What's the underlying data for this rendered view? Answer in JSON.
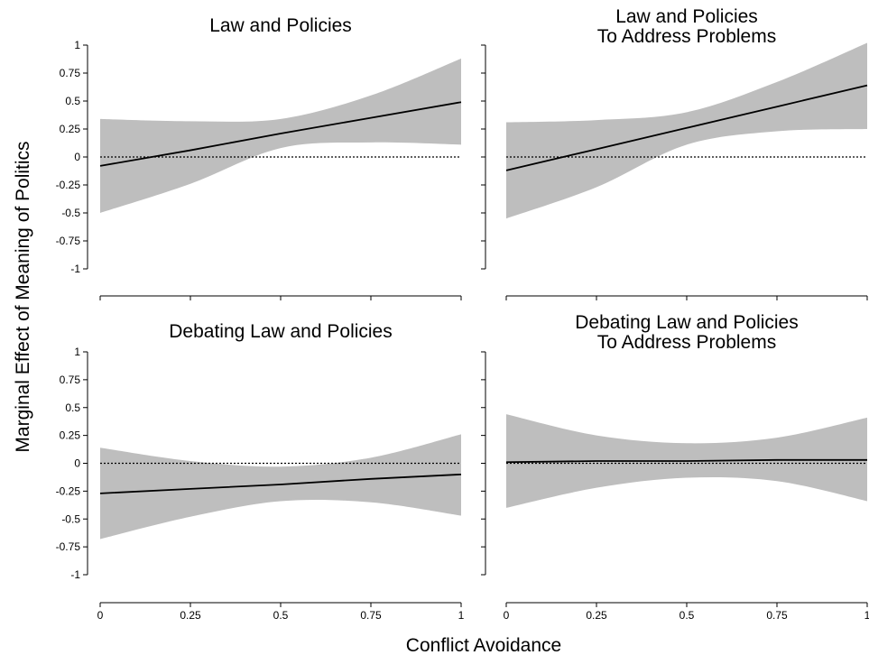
{
  "figure": {
    "ylabel": "Marginal Effect of Meaning of Politics",
    "xlabel": "Conflict Avoidance"
  },
  "chart_data": [
    {
      "type": "line",
      "title": [
        "Law and Policies"
      ],
      "xlim": [
        0,
        1
      ],
      "ylim": [
        -1,
        1
      ],
      "x": [
        0,
        0.25,
        0.5,
        0.75,
        1
      ],
      "xticks": [
        "0",
        "0.25",
        "0.5",
        "0.75",
        "1"
      ],
      "yticks": [
        "1",
        "0.75",
        "0.5",
        "0.25",
        "0",
        "-0.25",
        "-0.5",
        "-0.75",
        "-1"
      ],
      "y": [
        -0.08,
        0.06,
        0.21,
        0.35,
        0.49
      ],
      "lower": [
        -0.5,
        -0.24,
        0.08,
        0.13,
        0.11
      ],
      "upper": [
        0.34,
        0.32,
        0.34,
        0.55,
        0.88
      ],
      "reference_line": 0
    },
    {
      "type": "line",
      "title": [
        "Law and Policies",
        "To Address Problems"
      ],
      "xlim": [
        0,
        1
      ],
      "ylim": [
        -1,
        1
      ],
      "x": [
        0,
        0.25,
        0.5,
        0.75,
        1
      ],
      "xticks": [
        "0",
        "0.25",
        "0.5",
        "0.75",
        "1"
      ],
      "yticks": [],
      "y": [
        -0.12,
        0.07,
        0.26,
        0.45,
        0.64
      ],
      "lower": [
        -0.55,
        -0.27,
        0.11,
        0.23,
        0.25
      ],
      "upper": [
        0.31,
        0.33,
        0.4,
        0.67,
        1.02
      ],
      "reference_line": 0
    },
    {
      "type": "line",
      "title": [
        "Debating Law and Policies"
      ],
      "xlim": [
        0,
        1
      ],
      "ylim": [
        -1,
        1
      ],
      "x": [
        0,
        0.25,
        0.5,
        0.75,
        1
      ],
      "xticks": [
        "0",
        "0.25",
        "0.5",
        "0.75",
        "1"
      ],
      "yticks": [
        "1",
        "0.75",
        "0.5",
        "0.25",
        "0",
        "-0.25",
        "-0.5",
        "-0.75",
        "-1"
      ],
      "y": [
        -0.27,
        -0.23,
        -0.19,
        -0.14,
        -0.1
      ],
      "lower": [
        -0.68,
        -0.48,
        -0.34,
        -0.35,
        -0.47
      ],
      "upper": [
        0.14,
        0.02,
        -0.03,
        0.05,
        0.26
      ],
      "reference_line": 0
    },
    {
      "type": "line",
      "title": [
        "Debating Law and Policies",
        "To Address Problems"
      ],
      "xlim": [
        0,
        1
      ],
      "ylim": [
        -1,
        1
      ],
      "x": [
        0,
        0.25,
        0.5,
        0.75,
        1
      ],
      "xticks": [
        "0",
        "0.25",
        "0.5",
        "0.75",
        "1"
      ],
      "yticks": [],
      "y": [
        0.01,
        0.02,
        0.02,
        0.03,
        0.03
      ],
      "lower": [
        -0.4,
        -0.22,
        -0.13,
        -0.16,
        -0.34
      ],
      "upper": [
        0.44,
        0.25,
        0.18,
        0.23,
        0.41
      ],
      "reference_line": 0
    }
  ]
}
